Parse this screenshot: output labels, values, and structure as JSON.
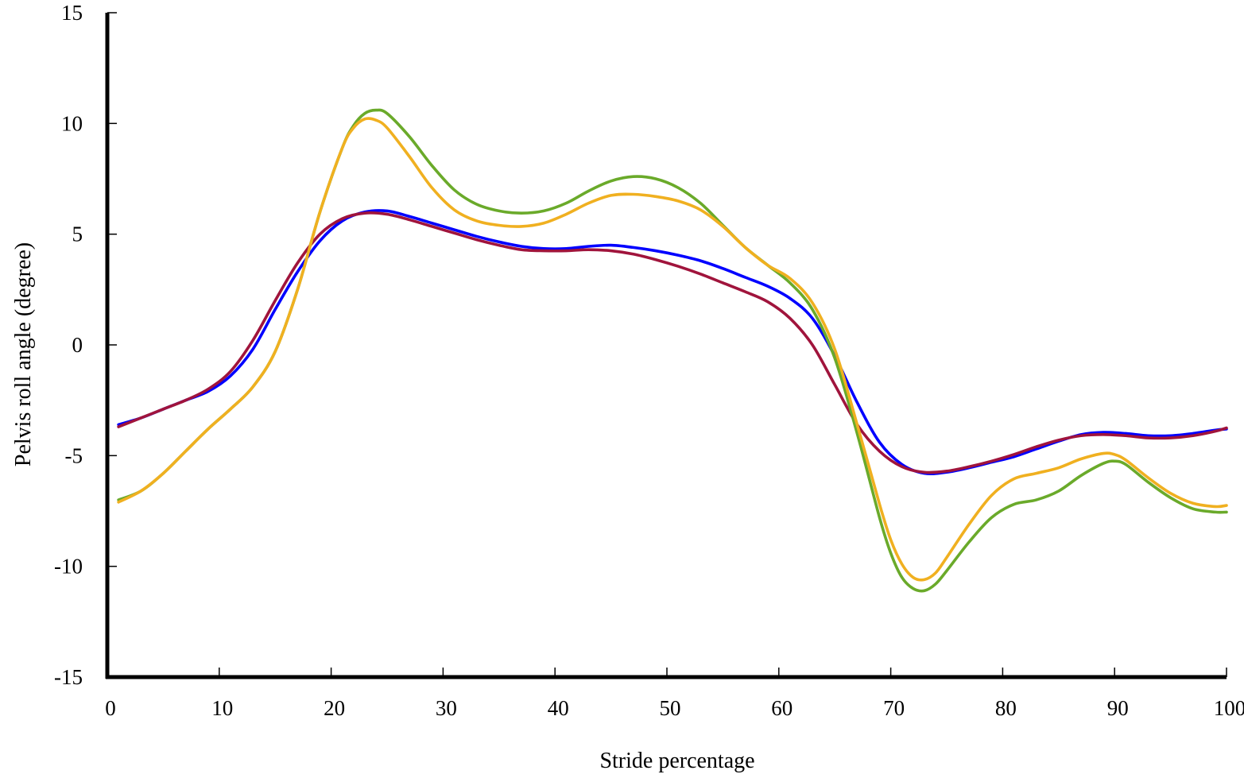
{
  "chart_data": {
    "type": "line",
    "title": "",
    "xlabel": "Stride percentage",
    "ylabel": "Pelvis roll angle (degree)",
    "xlim": [
      0,
      100
    ],
    "ylim": [
      -15,
      15
    ],
    "xticks": [
      0,
      10,
      20,
      30,
      40,
      50,
      60,
      70,
      80,
      90,
      100
    ],
    "yticks": [
      -15,
      -10,
      -5,
      0,
      5,
      10,
      15
    ],
    "grid": false,
    "legend": "none",
    "series": [
      {
        "color": "#0000ff",
        "points": [
          [
            1,
            -3.6
          ],
          [
            3,
            -3.3
          ],
          [
            5,
            -2.9
          ],
          [
            7,
            -2.5
          ],
          [
            9,
            -2.1
          ],
          [
            11,
            -1.4
          ],
          [
            13,
            -0.2
          ],
          [
            15,
            1.6
          ],
          [
            17,
            3.3
          ],
          [
            19,
            4.7
          ],
          [
            21,
            5.6
          ],
          [
            23,
            6.0
          ],
          [
            25,
            6.05
          ],
          [
            27,
            5.8
          ],
          [
            29,
            5.5
          ],
          [
            31,
            5.2
          ],
          [
            33,
            4.9
          ],
          [
            35,
            4.65
          ],
          [
            37,
            4.45
          ],
          [
            39,
            4.35
          ],
          [
            41,
            4.35
          ],
          [
            43,
            4.45
          ],
          [
            45,
            4.5
          ],
          [
            47,
            4.4
          ],
          [
            49,
            4.25
          ],
          [
            51,
            4.05
          ],
          [
            53,
            3.8
          ],
          [
            55,
            3.45
          ],
          [
            57,
            3.05
          ],
          [
            59,
            2.65
          ],
          [
            61,
            2.1
          ],
          [
            63,
            1.2
          ],
          [
            65,
            -0.5
          ],
          [
            67,
            -2.6
          ],
          [
            69,
            -4.4
          ],
          [
            71,
            -5.4
          ],
          [
            73,
            -5.8
          ],
          [
            75,
            -5.75
          ],
          [
            77,
            -5.55
          ],
          [
            79,
            -5.3
          ],
          [
            81,
            -5.05
          ],
          [
            83,
            -4.7
          ],
          [
            85,
            -4.35
          ],
          [
            87,
            -4.05
          ],
          [
            89,
            -3.95
          ],
          [
            91,
            -4.0
          ],
          [
            93,
            -4.1
          ],
          [
            95,
            -4.1
          ],
          [
            97,
            -4.0
          ],
          [
            99,
            -3.85
          ],
          [
            100,
            -3.8
          ]
        ]
      },
      {
        "color": "#a0143c",
        "points": [
          [
            1,
            -3.7
          ],
          [
            3,
            -3.3
          ],
          [
            5,
            -2.9
          ],
          [
            7,
            -2.5
          ],
          [
            9,
            -2.0
          ],
          [
            11,
            -1.2
          ],
          [
            13,
            0.2
          ],
          [
            15,
            2.0
          ],
          [
            17,
            3.7
          ],
          [
            19,
            5.0
          ],
          [
            21,
            5.7
          ],
          [
            23,
            5.95
          ],
          [
            25,
            5.9
          ],
          [
            27,
            5.65
          ],
          [
            29,
            5.35
          ],
          [
            31,
            5.05
          ],
          [
            33,
            4.75
          ],
          [
            35,
            4.5
          ],
          [
            37,
            4.3
          ],
          [
            39,
            4.25
          ],
          [
            41,
            4.25
          ],
          [
            43,
            4.3
          ],
          [
            45,
            4.25
          ],
          [
            47,
            4.1
          ],
          [
            49,
            3.85
          ],
          [
            51,
            3.55
          ],
          [
            53,
            3.2
          ],
          [
            55,
            2.8
          ],
          [
            57,
            2.4
          ],
          [
            59,
            1.95
          ],
          [
            61,
            1.2
          ],
          [
            63,
            0.0
          ],
          [
            65,
            -1.8
          ],
          [
            67,
            -3.6
          ],
          [
            69,
            -4.8
          ],
          [
            71,
            -5.5
          ],
          [
            73,
            -5.75
          ],
          [
            75,
            -5.7
          ],
          [
            77,
            -5.5
          ],
          [
            79,
            -5.25
          ],
          [
            81,
            -4.95
          ],
          [
            83,
            -4.6
          ],
          [
            85,
            -4.3
          ],
          [
            87,
            -4.1
          ],
          [
            89,
            -4.05
          ],
          [
            91,
            -4.1
          ],
          [
            93,
            -4.2
          ],
          [
            95,
            -4.2
          ],
          [
            97,
            -4.1
          ],
          [
            99,
            -3.9
          ],
          [
            100,
            -3.75
          ]
        ]
      },
      {
        "color": "#6aaa2a",
        "points": [
          [
            1,
            -7.0
          ],
          [
            3,
            -6.6
          ],
          [
            5,
            -5.8
          ],
          [
            7,
            -4.8
          ],
          [
            9,
            -3.8
          ],
          [
            11,
            -2.9
          ],
          [
            13,
            -1.9
          ],
          [
            15,
            -0.3
          ],
          [
            17,
            2.5
          ],
          [
            19,
            6.0
          ],
          [
            21,
            8.9
          ],
          [
            22,
            9.9
          ],
          [
            23,
            10.45
          ],
          [
            24,
            10.6
          ],
          [
            25,
            10.45
          ],
          [
            27,
            9.4
          ],
          [
            29,
            8.1
          ],
          [
            31,
            7.0
          ],
          [
            33,
            6.35
          ],
          [
            35,
            6.05
          ],
          [
            37,
            5.95
          ],
          [
            39,
            6.05
          ],
          [
            41,
            6.4
          ],
          [
            43,
            6.95
          ],
          [
            45,
            7.4
          ],
          [
            47,
            7.6
          ],
          [
            49,
            7.5
          ],
          [
            51,
            7.1
          ],
          [
            53,
            6.4
          ],
          [
            55,
            5.4
          ],
          [
            57,
            4.4
          ],
          [
            59,
            3.6
          ],
          [
            61,
            2.8
          ],
          [
            63,
            1.6
          ],
          [
            65,
            -0.6
          ],
          [
            67,
            -4.0
          ],
          [
            69,
            -7.8
          ],
          [
            70,
            -9.4
          ],
          [
            71,
            -10.5
          ],
          [
            72,
            -11.0
          ],
          [
            73,
            -11.1
          ],
          [
            74,
            -10.8
          ],
          [
            75,
            -10.2
          ],
          [
            77,
            -8.9
          ],
          [
            79,
            -7.8
          ],
          [
            81,
            -7.2
          ],
          [
            83,
            -7.0
          ],
          [
            85,
            -6.6
          ],
          [
            87,
            -5.9
          ],
          [
            89,
            -5.35
          ],
          [
            90,
            -5.25
          ],
          [
            91,
            -5.4
          ],
          [
            93,
            -6.2
          ],
          [
            95,
            -6.9
          ],
          [
            97,
            -7.4
          ],
          [
            99,
            -7.55
          ],
          [
            100,
            -7.55
          ]
        ]
      },
      {
        "color": "#f0b020",
        "points": [
          [
            1,
            -7.1
          ],
          [
            3,
            -6.6
          ],
          [
            5,
            -5.8
          ],
          [
            7,
            -4.8
          ],
          [
            9,
            -3.8
          ],
          [
            11,
            -2.9
          ],
          [
            13,
            -1.9
          ],
          [
            15,
            -0.3
          ],
          [
            17,
            2.5
          ],
          [
            19,
            6.0
          ],
          [
            21,
            8.9
          ],
          [
            22,
            9.8
          ],
          [
            23,
            10.2
          ],
          [
            24,
            10.15
          ],
          [
            25,
            9.8
          ],
          [
            27,
            8.5
          ],
          [
            29,
            7.1
          ],
          [
            31,
            6.1
          ],
          [
            33,
            5.6
          ],
          [
            35,
            5.4
          ],
          [
            37,
            5.35
          ],
          [
            39,
            5.5
          ],
          [
            41,
            5.9
          ],
          [
            43,
            6.4
          ],
          [
            45,
            6.75
          ],
          [
            47,
            6.8
          ],
          [
            49,
            6.7
          ],
          [
            51,
            6.5
          ],
          [
            53,
            6.1
          ],
          [
            55,
            5.35
          ],
          [
            57,
            4.4
          ],
          [
            59,
            3.6
          ],
          [
            61,
            3.0
          ],
          [
            63,
            1.9
          ],
          [
            65,
            -0.2
          ],
          [
            67,
            -3.6
          ],
          [
            69,
            -7.2
          ],
          [
            70,
            -8.8
          ],
          [
            71,
            -9.9
          ],
          [
            72,
            -10.5
          ],
          [
            73,
            -10.6
          ],
          [
            74,
            -10.3
          ],
          [
            75,
            -9.6
          ],
          [
            77,
            -8.1
          ],
          [
            79,
            -6.8
          ],
          [
            81,
            -6.05
          ],
          [
            83,
            -5.8
          ],
          [
            85,
            -5.55
          ],
          [
            87,
            -5.15
          ],
          [
            89,
            -4.9
          ],
          [
            90,
            -4.95
          ],
          [
            91,
            -5.2
          ],
          [
            93,
            -6.0
          ],
          [
            95,
            -6.7
          ],
          [
            97,
            -7.15
          ],
          [
            99,
            -7.3
          ],
          [
            100,
            -7.25
          ]
        ]
      }
    ]
  }
}
